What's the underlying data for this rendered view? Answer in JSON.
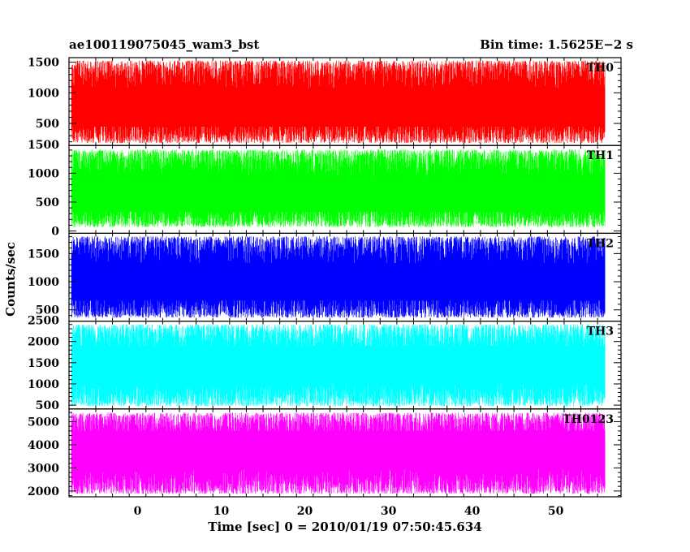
{
  "header": {
    "title": "ae100119075045_wam3_bst",
    "bin_time": "Bin time: 1.5625E−2 s"
  },
  "chart_data": {
    "type": "line",
    "title": "ae100119075045_wam3_bst",
    "xlabel": "Time [sec] 0 = 2010/01/19 07:50:45.634",
    "ylabel": "Counts/sec",
    "xlim": [
      -8.2,
      57.8
    ],
    "x_range": [
      -7.9,
      55.9
    ],
    "x_ticks": [
      0,
      10,
      20,
      30,
      40,
      50
    ],
    "x_tick_labels": [
      "0",
      "10",
      "20",
      "30",
      "40",
      "50"
    ],
    "grid": false,
    "panels": [
      {
        "name": "TH0",
        "color": "#ff0000",
        "ylim": [
          140,
          1575
        ],
        "ticks": [
          500,
          1000,
          1500
        ],
        "tick_labels": [
          "500",
          "1000",
          "1500"
        ],
        "mean": 760,
        "low": 150,
        "high": 1570
      },
      {
        "name": "TH1",
        "color": "#00ff00",
        "ylim": [
          -40,
          1480
        ],
        "ticks": [
          0,
          500,
          1000,
          1500
        ],
        "tick_labels": [
          "0",
          "500",
          "1000",
          "1500"
        ],
        "mean": 640,
        "low": 40,
        "high": 1450
      },
      {
        "name": "TH2",
        "color": "#0000ff",
        "ylim": [
          300,
          1860
        ],
        "ticks": [
          500,
          1000,
          1500
        ],
        "tick_labels": [
          "500",
          "1000",
          "1500"
        ],
        "mean": 1000,
        "low": 330,
        "high": 1850
      },
      {
        "name": "TH3",
        "color": "#00ffff",
        "ylim": [
          410,
          2480
        ],
        "ticks": [
          500,
          1000,
          1500,
          2000,
          2500
        ],
        "tick_labels": [
          "500",
          "1000",
          "1500",
          "2000",
          "2500"
        ],
        "mean": 1450,
        "low": 430,
        "high": 2470
      },
      {
        "name": "TH0123",
        "color": "#ff00ff",
        "ylim": [
          1750,
          5550
        ],
        "ticks": [
          2000,
          3000,
          4000,
          5000
        ],
        "tick_labels": [
          "2000",
          "3000",
          "4000",
          "5000"
        ],
        "mean": 3800,
        "low": 1800,
        "high": 5500
      }
    ]
  }
}
